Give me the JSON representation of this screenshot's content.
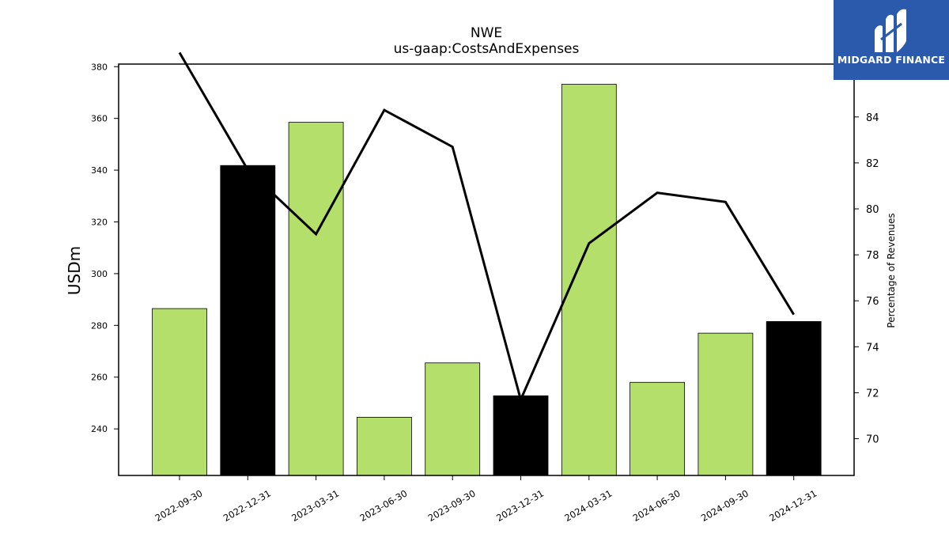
{
  "header": {
    "title": "NWE",
    "subtitle": "us-gaap:CostsAndExpenses"
  },
  "logo": {
    "text": "MIDGARD FINANCE",
    "icon": "midgard-logo-icon",
    "background": "#2b5aad"
  },
  "chart_data": {
    "type": "bar",
    "title": "NWE",
    "subtitle": "us-gaap:CostsAndExpenses",
    "categories": [
      "2022-09-30",
      "2022-12-31",
      "2023-03-31",
      "2023-06-30",
      "2023-09-30",
      "2023-12-31",
      "2024-03-31",
      "2024-06-30",
      "2024-09-30",
      "2024-12-31"
    ],
    "series": [
      {
        "type": "bar",
        "axis": "left",
        "values": [
          286.5,
          341.8,
          358.5,
          244.5,
          265.5,
          252.8,
          373.2,
          258.0,
          277.0,
          281.5
        ],
        "colors": [
          "#b5df6b",
          "#000000",
          "#b5df6b",
          "#b5df6b",
          "#b5df6b",
          "#000000",
          "#b5df6b",
          "#b5df6b",
          "#b5df6b",
          "#000000"
        ]
      },
      {
        "type": "line",
        "axis": "right",
        "values": [
          86.8,
          81.7,
          78.9,
          84.3,
          82.7,
          71.7,
          78.5,
          80.7,
          80.3,
          75.4
        ],
        "color": "#000000"
      }
    ],
    "ylabel": "USDm",
    "y2label": "Percentage of Revenues",
    "ylim": [
      222,
      381
    ],
    "y2lim": [
      68.4,
      86.3
    ],
    "yticks": [
      240,
      260,
      280,
      300,
      320,
      340,
      360,
      380
    ],
    "y2ticks": [
      70,
      72,
      74,
      76,
      78,
      80,
      82,
      84
    ],
    "legend": "none",
    "grid": false
  }
}
